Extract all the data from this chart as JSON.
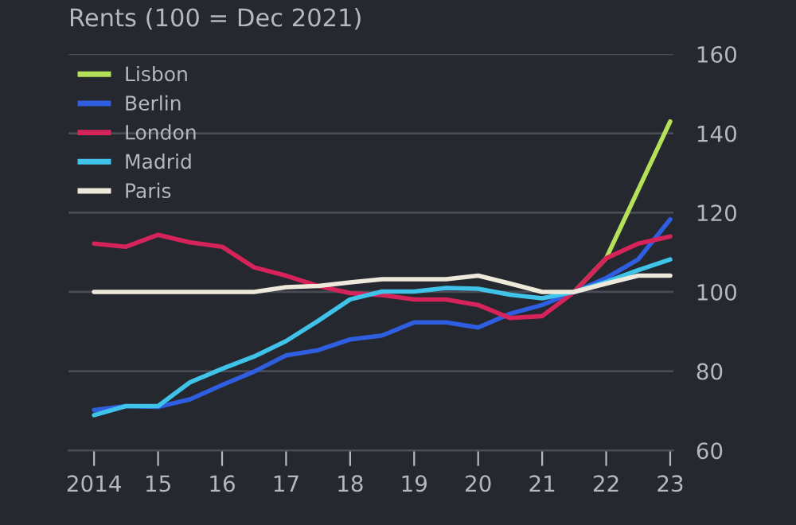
{
  "chart_data": {
    "type": "line",
    "title": "Rents (100 = Dec 2021)",
    "series": [
      {
        "name": "Lisbon",
        "color": "#b5e05a",
        "x": [
          2021.5,
          2022,
          2023
        ],
        "values": [
          100,
          108.5,
          143
        ]
      },
      {
        "name": "Berlin",
        "color": "#2f5fe0",
        "x": [
          2014,
          2014.5,
          2015,
          2015.5,
          2016,
          2016.5,
          2017,
          2017.5,
          2018,
          2018.5,
          2019,
          2019.5,
          2020,
          2020.5,
          2021,
          2021.5,
          2022,
          2022.5,
          2023
        ],
        "values": [
          70.2,
          71.2,
          71,
          72.9,
          76.5,
          79.9,
          84,
          85.3,
          88,
          89,
          92.3,
          92.3,
          91,
          94.5,
          96.7,
          100,
          103.5,
          108.2,
          118.3
        ]
      },
      {
        "name": "London",
        "color": "#d6245a",
        "x": [
          2014,
          2014.5,
          2015,
          2015.5,
          2016,
          2016.5,
          2017,
          2017.5,
          2018,
          2018.5,
          2019,
          2019.5,
          2020,
          2020.5,
          2021,
          2021.5,
          2022,
          2022.5,
          2023
        ],
        "values": [
          112.2,
          111.4,
          114.4,
          112.5,
          111.4,
          106.2,
          104.1,
          101.5,
          99.7,
          99.2,
          98.1,
          98.1,
          96.7,
          93.4,
          93.9,
          100,
          108.5,
          112.2,
          114
        ]
      },
      {
        "name": "Madrid",
        "color": "#3fc3e8",
        "x": [
          2014,
          2014.5,
          2015,
          2015.5,
          2016,
          2016.5,
          2017,
          2017.5,
          2018,
          2018.5,
          2019,
          2019.5,
          2020,
          2020.5,
          2021,
          2021.5,
          2022,
          2022.5,
          2023
        ],
        "values": [
          68.9,
          71.2,
          71.2,
          77.2,
          80.6,
          83.7,
          87.6,
          92.7,
          98.1,
          100.1,
          100.1,
          101,
          100.8,
          99.3,
          98.4,
          100,
          102.5,
          105.5,
          108.2
        ]
      },
      {
        "name": "Paris",
        "color": "#efe9dc",
        "x": [
          2014,
          2014.5,
          2015,
          2015.5,
          2016,
          2016.5,
          2017,
          2017.5,
          2018,
          2018.5,
          2019,
          2019.5,
          2020,
          2020.5,
          2021,
          2021.5,
          2022,
          2022.5,
          2023
        ],
        "values": [
          100,
          100,
          100,
          100,
          100,
          100,
          101.2,
          101.5,
          102.4,
          103.2,
          103.2,
          103.2,
          104.1,
          102.1,
          100,
          100,
          102.1,
          104.1,
          104.1
        ]
      }
    ],
    "xlim": [
      2013.6,
      2023.05
    ],
    "xticks": [
      2014,
      {
        "value": 2015,
        "label": "15"
      },
      {
        "value": 2016,
        "label": "16"
      },
      {
        "value": 2017,
        "label": "17"
      },
      {
        "value": 2018,
        "label": "18"
      },
      {
        "value": 2019,
        "label": "19"
      },
      {
        "value": 2020,
        "label": "20"
      },
      {
        "value": 2021,
        "label": "21"
      },
      {
        "value": 2022,
        "label": "22"
      },
      {
        "value": 2023,
        "label": "23"
      }
    ],
    "ylim": [
      60,
      160
    ],
    "yticks": [
      60,
      80,
      100,
      120,
      140,
      160
    ],
    "grid": "y",
    "legend": "top left",
    "marker": "none",
    "line_style": "solid"
  }
}
